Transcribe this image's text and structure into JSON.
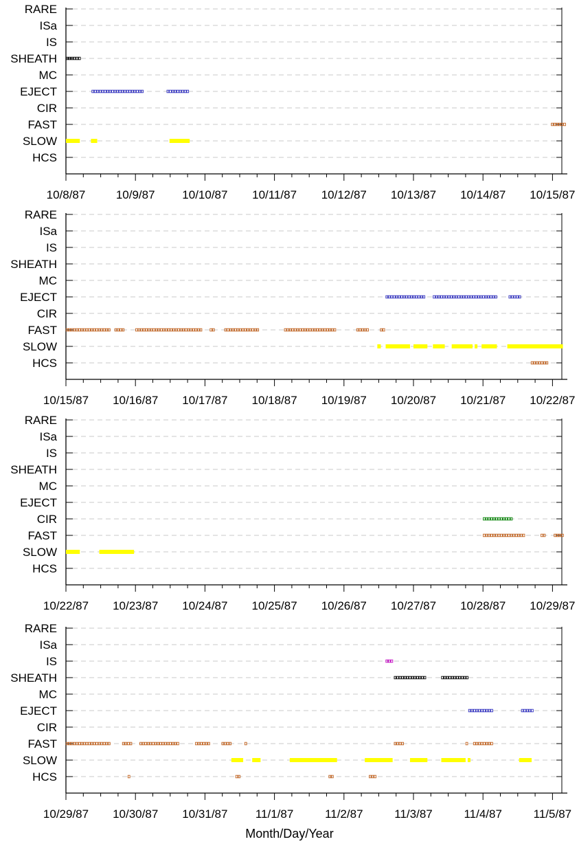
{
  "chart_data": {
    "type": "event-timeline",
    "xlabel": "Month/Day/Year",
    "colors": {
      "SLOW": "#ffff00",
      "FAST": "#c0601c",
      "HCS": "#c0601c",
      "CIR": "#008000",
      "EJECT": "#3030c0",
      "MC": "#000000",
      "SHEATH": "#000000",
      "IS": "#c000c0",
      "ISa": "#000000",
      "RARE": "#000000",
      "grid": "#c8c8c8",
      "axis": "#000000"
    },
    "categories": [
      "RARE",
      "ISa",
      "IS",
      "SHEATH",
      "MC",
      "EJECT",
      "CIR",
      "FAST",
      "SLOW",
      "HCS"
    ],
    "panels": [
      {
        "xticks": [
          "10/8/87",
          "10/9/87",
          "10/10/87",
          "10/11/87",
          "10/12/87",
          "10/13/87",
          "10/14/87",
          "10/15/87"
        ],
        "events": [
          {
            "cat": "SHEATH",
            "start": 0.0,
            "end": 0.2
          },
          {
            "cat": "EJECT",
            "start": 0.37,
            "end": 1.12
          },
          {
            "cat": "EJECT",
            "start": 1.45,
            "end": 1.78
          },
          {
            "cat": "FAST",
            "start": 6.98,
            "end": 7.2
          },
          {
            "cat": "SLOW",
            "start": 0.0,
            "end": 0.2
          },
          {
            "cat": "SLOW",
            "start": 0.36,
            "end": 0.45
          },
          {
            "cat": "SLOW",
            "start": 1.49,
            "end": 1.78
          }
        ]
      },
      {
        "xticks": [
          "10/15/87",
          "10/16/87",
          "10/17/87",
          "10/18/87",
          "10/19/87",
          "10/20/87",
          "10/21/87",
          "10/22/87"
        ],
        "events": [
          {
            "cat": "EJECT",
            "start": 4.6,
            "end": 5.18
          },
          {
            "cat": "EJECT",
            "start": 5.28,
            "end": 6.19
          },
          {
            "cat": "EJECT",
            "start": 6.37,
            "end": 6.54
          },
          {
            "cat": "FAST",
            "start": 0.0,
            "end": 0.65
          },
          {
            "cat": "FAST",
            "start": 0.7,
            "end": 0.86
          },
          {
            "cat": "FAST",
            "start": 1.0,
            "end": 1.95
          },
          {
            "cat": "FAST",
            "start": 2.07,
            "end": 2.15
          },
          {
            "cat": "FAST",
            "start": 2.28,
            "end": 2.78
          },
          {
            "cat": "FAST",
            "start": 3.14,
            "end": 3.87
          },
          {
            "cat": "FAST",
            "start": 4.18,
            "end": 4.35
          },
          {
            "cat": "FAST",
            "start": 4.52,
            "end": 4.6
          },
          {
            "cat": "SLOW",
            "start": 4.48,
            "end": 4.53
          },
          {
            "cat": "SLOW",
            "start": 4.6,
            "end": 4.95
          },
          {
            "cat": "SLOW",
            "start": 5.0,
            "end": 5.2
          },
          {
            "cat": "SLOW",
            "start": 5.28,
            "end": 5.45
          },
          {
            "cat": "SLOW",
            "start": 5.55,
            "end": 5.85
          },
          {
            "cat": "SLOW",
            "start": 5.88,
            "end": 5.92
          },
          {
            "cat": "SLOW",
            "start": 5.98,
            "end": 6.2
          },
          {
            "cat": "SLOW",
            "start": 6.35,
            "end": 7.15
          },
          {
            "cat": "HCS",
            "start": 6.69,
            "end": 6.94
          }
        ]
      },
      {
        "xticks": [
          "10/22/87",
          "10/23/87",
          "10/24/87",
          "10/25/87",
          "10/26/87",
          "10/27/87",
          "10/28/87",
          "10/29/87"
        ],
        "events": [
          {
            "cat": "CIR",
            "start": 6.0,
            "end": 6.41
          },
          {
            "cat": "FAST",
            "start": 6.0,
            "end": 6.62
          },
          {
            "cat": "FAST",
            "start": 6.83,
            "end": 6.9
          },
          {
            "cat": "FAST",
            "start": 7.02,
            "end": 7.15
          },
          {
            "cat": "SLOW",
            "start": 0.0,
            "end": 0.2
          },
          {
            "cat": "SLOW",
            "start": 0.48,
            "end": 0.98
          }
        ]
      },
      {
        "xticks": [
          "10/29/87",
          "10/30/87",
          "10/31/87",
          "11/1/87",
          "11/2/87",
          "11/3/87",
          "11/4/87",
          "11/5/87"
        ],
        "events": [
          {
            "cat": "IS",
            "start": 4.6,
            "end": 4.7
          },
          {
            "cat": "SHEATH",
            "start": 4.72,
            "end": 5.2
          },
          {
            "cat": "SHEATH",
            "start": 5.4,
            "end": 5.78
          },
          {
            "cat": "EJECT",
            "start": 5.79,
            "end": 6.16
          },
          {
            "cat": "EJECT",
            "start": 6.55,
            "end": 6.72
          },
          {
            "cat": "FAST",
            "start": 0.0,
            "end": 0.63
          },
          {
            "cat": "FAST",
            "start": 0.81,
            "end": 0.97
          },
          {
            "cat": "FAST",
            "start": 1.06,
            "end": 1.64
          },
          {
            "cat": "FAST",
            "start": 1.86,
            "end": 2.06
          },
          {
            "cat": "FAST",
            "start": 2.24,
            "end": 2.4
          },
          {
            "cat": "FAST",
            "start": 2.57,
            "end": 2.61
          },
          {
            "cat": "FAST",
            "start": 4.72,
            "end": 4.88
          },
          {
            "cat": "FAST",
            "start": 5.75,
            "end": 5.8
          },
          {
            "cat": "FAST",
            "start": 5.86,
            "end": 6.16
          },
          {
            "cat": "SLOW",
            "start": 2.38,
            "end": 2.55
          },
          {
            "cat": "SLOW",
            "start": 2.68,
            "end": 2.8
          },
          {
            "cat": "SLOW",
            "start": 3.22,
            "end": 3.9
          },
          {
            "cat": "SLOW",
            "start": 4.3,
            "end": 4.7
          },
          {
            "cat": "SLOW",
            "start": 4.95,
            "end": 5.2
          },
          {
            "cat": "SLOW",
            "start": 5.4,
            "end": 5.75
          },
          {
            "cat": "SLOW",
            "start": 5.78,
            "end": 5.82
          },
          {
            "cat": "SLOW",
            "start": 6.52,
            "end": 6.7
          },
          {
            "cat": "HCS",
            "start": 0.89,
            "end": 0.93
          },
          {
            "cat": "HCS",
            "start": 2.44,
            "end": 2.52
          },
          {
            "cat": "HCS",
            "start": 3.78,
            "end": 3.85
          },
          {
            "cat": "HCS",
            "start": 4.36,
            "end": 4.48
          }
        ]
      }
    ]
  }
}
